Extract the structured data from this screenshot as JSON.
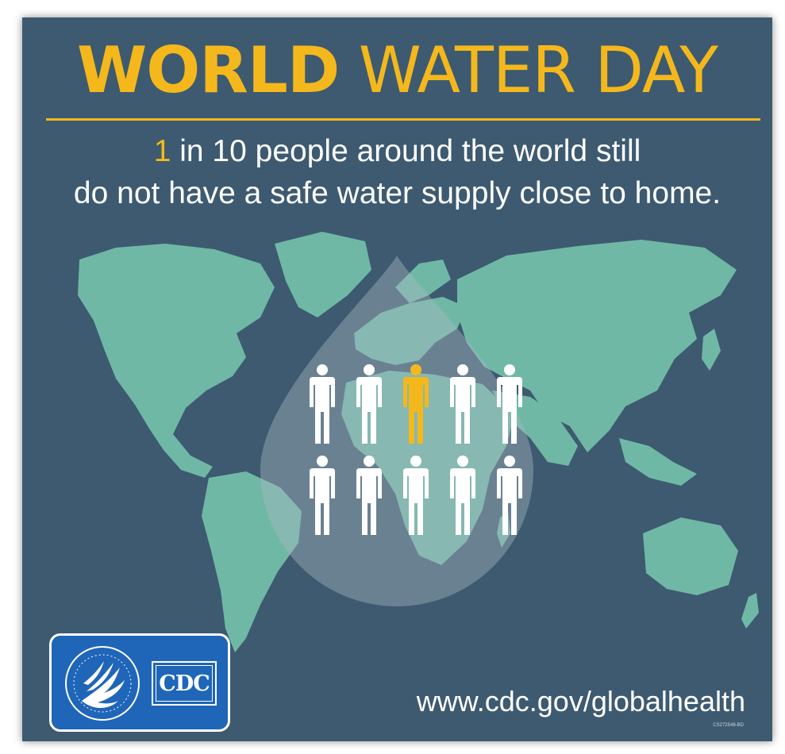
{
  "title": {
    "bold": "WORLD",
    "light": "WATER DAY"
  },
  "statistic": {
    "highlight": "1",
    "line1_rest": " in 10 people around the world still",
    "line2": "do not have a safe water supply close to home."
  },
  "people_icons": {
    "total": 10,
    "highlighted": 1,
    "highlighted_position": 3
  },
  "badge": {
    "cdc_label": "CDC",
    "seal_icon": "hhs-eagle-seal-icon"
  },
  "footer": {
    "url": "www.cdc.gov/globalhealth",
    "code": "CS272548-BD"
  },
  "colors": {
    "background": "#3d5a70",
    "accent_yellow": "#f4b81c",
    "continent": "#6fb8a6",
    "drop": "#a9b8c2",
    "person": "#ffffff",
    "badge": "#1f66b8",
    "text": "#ffffff"
  }
}
